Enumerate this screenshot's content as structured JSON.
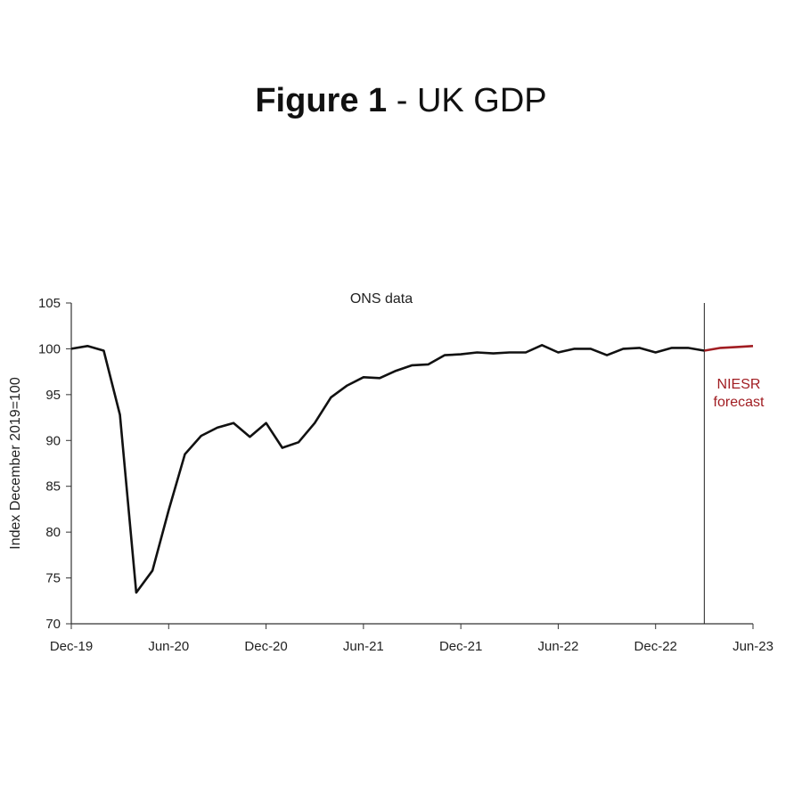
{
  "figure": {
    "title_bold": "Figure 1",
    "title_sep": " - ",
    "title_rest": "UK GDP"
  },
  "chart_data": {
    "type": "line",
    "title": "Figure 1 - UK GDP",
    "xlabel": "",
    "ylabel": "Index December 2019=100",
    "ylim": [
      70,
      105
    ],
    "yticks": [
      70,
      75,
      80,
      85,
      90,
      95,
      100,
      105
    ],
    "xticks": [
      "Dec-19",
      "Jun-20",
      "Dec-20",
      "Jun-21",
      "Dec-21",
      "Jun-22",
      "Dec-22",
      "Jun-23"
    ],
    "x_start": "Dec-19",
    "x_end": "Jun-23",
    "grid": false,
    "colors": {
      "actual": "#111111",
      "forecast": "#a11d22",
      "axis": "#333333"
    },
    "annotations": {
      "ons": "ONS data",
      "forecast_line1": "NIESR",
      "forecast_line2": "forecast",
      "divider_at": "Mar-23"
    },
    "series": [
      {
        "name": "ONS data",
        "values": [
          100.0,
          100.3,
          99.8,
          92.8,
          73.4,
          75.8,
          82.4,
          88.5,
          90.5,
          91.4,
          91.9,
          90.4,
          91.9,
          89.2,
          89.8,
          91.9,
          94.7,
          96.0,
          96.9,
          96.8,
          97.6,
          98.2,
          98.3,
          99.3,
          99.4,
          99.6,
          99.5,
          99.6,
          99.6,
          100.4,
          99.6,
          100.0,
          100.0,
          99.3,
          100.0,
          100.1,
          99.6,
          100.1,
          100.1,
          99.8
        ]
      },
      {
        "name": "NIESR forecast",
        "start": "Mar-23",
        "values": [
          99.8,
          100.1,
          100.2,
          100.3
        ]
      }
    ]
  }
}
